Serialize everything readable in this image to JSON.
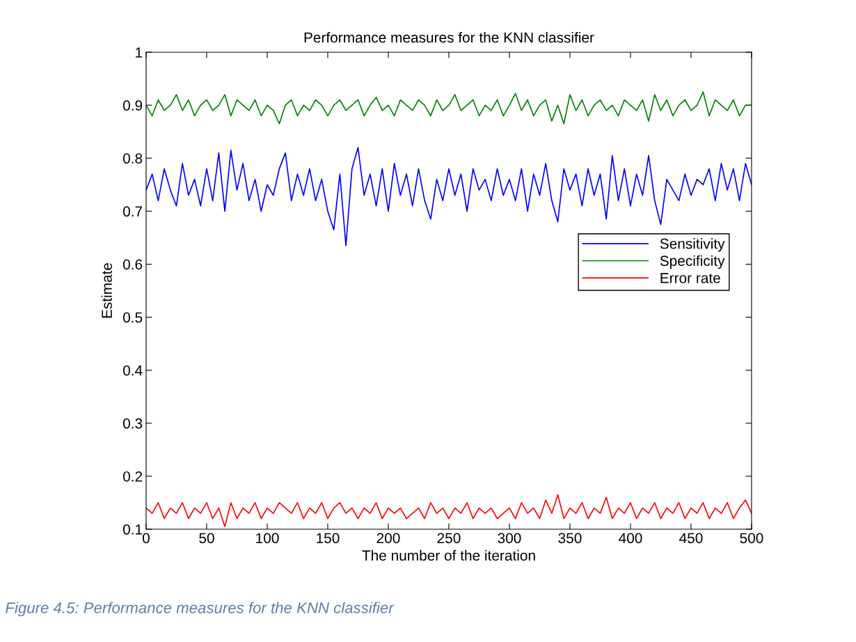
{
  "chart_data": {
    "type": "line",
    "title": "Performance measures for the KNN classifier",
    "xlabel": "The number of the iteration",
    "ylabel": "Estimate",
    "x": [
      0,
      5,
      10,
      15,
      20,
      25,
      30,
      35,
      40,
      45,
      50,
      55,
      60,
      65,
      70,
      75,
      80,
      85,
      90,
      95,
      100,
      105,
      110,
      115,
      120,
      125,
      130,
      135,
      140,
      145,
      150,
      155,
      160,
      165,
      170,
      175,
      180,
      185,
      190,
      195,
      200,
      205,
      210,
      215,
      220,
      225,
      230,
      235,
      240,
      245,
      250,
      255,
      260,
      265,
      270,
      275,
      280,
      285,
      290,
      295,
      300,
      305,
      310,
      315,
      320,
      325,
      330,
      335,
      340,
      345,
      350,
      355,
      360,
      365,
      370,
      375,
      380,
      385,
      390,
      395,
      400,
      405,
      410,
      415,
      420,
      425,
      430,
      435,
      440,
      445,
      450,
      455,
      460,
      465,
      470,
      475,
      480,
      485,
      490,
      495,
      500
    ],
    "series": [
      {
        "name": "Sensitivity",
        "color": "#0000ff",
        "values": [
          0.74,
          0.77,
          0.72,
          0.78,
          0.74,
          0.71,
          0.79,
          0.73,
          0.76,
          0.71,
          0.78,
          0.72,
          0.81,
          0.7,
          0.815,
          0.74,
          0.79,
          0.72,
          0.76,
          0.7,
          0.75,
          0.73,
          0.78,
          0.81,
          0.72,
          0.77,
          0.73,
          0.78,
          0.72,
          0.76,
          0.7,
          0.665,
          0.77,
          0.635,
          0.78,
          0.82,
          0.73,
          0.77,
          0.71,
          0.78,
          0.7,
          0.79,
          0.73,
          0.77,
          0.71,
          0.78,
          0.72,
          0.685,
          0.76,
          0.72,
          0.78,
          0.73,
          0.77,
          0.7,
          0.78,
          0.74,
          0.76,
          0.72,
          0.78,
          0.73,
          0.76,
          0.72,
          0.78,
          0.7,
          0.77,
          0.73,
          0.79,
          0.72,
          0.68,
          0.78,
          0.74,
          0.77,
          0.71,
          0.78,
          0.73,
          0.77,
          0.685,
          0.805,
          0.72,
          0.78,
          0.71,
          0.77,
          0.73,
          0.805,
          0.72,
          0.675,
          0.76,
          0.74,
          0.72,
          0.77,
          0.73,
          0.76,
          0.75,
          0.78,
          0.72,
          0.79,
          0.74,
          0.78,
          0.72,
          0.79,
          0.75
        ]
      },
      {
        "name": "Specificity",
        "color": "#008000",
        "values": [
          0.9,
          0.88,
          0.91,
          0.89,
          0.9,
          0.92,
          0.89,
          0.91,
          0.88,
          0.9,
          0.91,
          0.89,
          0.9,
          0.92,
          0.88,
          0.91,
          0.9,
          0.89,
          0.91,
          0.88,
          0.9,
          0.89,
          0.865,
          0.9,
          0.91,
          0.88,
          0.9,
          0.89,
          0.91,
          0.9,
          0.88,
          0.9,
          0.91,
          0.89,
          0.9,
          0.91,
          0.88,
          0.9,
          0.915,
          0.89,
          0.9,
          0.88,
          0.91,
          0.9,
          0.89,
          0.91,
          0.9,
          0.88,
          0.91,
          0.89,
          0.9,
          0.92,
          0.89,
          0.9,
          0.91,
          0.88,
          0.9,
          0.89,
          0.91,
          0.88,
          0.9,
          0.922,
          0.89,
          0.91,
          0.88,
          0.9,
          0.91,
          0.87,
          0.9,
          0.865,
          0.92,
          0.89,
          0.91,
          0.88,
          0.9,
          0.91,
          0.89,
          0.9,
          0.88,
          0.91,
          0.9,
          0.89,
          0.91,
          0.87,
          0.92,
          0.89,
          0.91,
          0.88,
          0.9,
          0.91,
          0.89,
          0.9,
          0.925,
          0.88,
          0.91,
          0.9,
          0.89,
          0.91,
          0.88,
          0.9,
          0.9
        ]
      },
      {
        "name": "Error rate",
        "color": "#ff0000",
        "values": [
          0.14,
          0.13,
          0.15,
          0.12,
          0.14,
          0.13,
          0.15,
          0.12,
          0.14,
          0.13,
          0.15,
          0.12,
          0.14,
          0.105,
          0.15,
          0.12,
          0.14,
          0.13,
          0.15,
          0.12,
          0.14,
          0.13,
          0.15,
          0.14,
          0.13,
          0.15,
          0.12,
          0.14,
          0.13,
          0.15,
          0.12,
          0.14,
          0.15,
          0.13,
          0.14,
          0.12,
          0.14,
          0.13,
          0.15,
          0.12,
          0.14,
          0.13,
          0.14,
          0.12,
          0.13,
          0.14,
          0.12,
          0.15,
          0.13,
          0.14,
          0.12,
          0.14,
          0.13,
          0.15,
          0.12,
          0.14,
          0.13,
          0.14,
          0.12,
          0.13,
          0.14,
          0.12,
          0.15,
          0.13,
          0.14,
          0.12,
          0.155,
          0.13,
          0.165,
          0.12,
          0.14,
          0.13,
          0.15,
          0.12,
          0.14,
          0.13,
          0.16,
          0.12,
          0.14,
          0.13,
          0.15,
          0.12,
          0.14,
          0.13,
          0.15,
          0.12,
          0.14,
          0.13,
          0.15,
          0.12,
          0.14,
          0.13,
          0.15,
          0.12,
          0.14,
          0.13,
          0.15,
          0.12,
          0.14,
          0.155,
          0.13
        ]
      }
    ],
    "xlim": [
      0,
      500
    ],
    "xticks": [
      0,
      50,
      100,
      150,
      200,
      250,
      300,
      350,
      400,
      450,
      500
    ],
    "ylim": [
      0.1,
      1
    ],
    "yticks": [
      0.1,
      0.2,
      0.3,
      0.4,
      0.5,
      0.6,
      0.7,
      0.8,
      0.9,
      1
    ],
    "grid": false,
    "legend": "right",
    "marker": "none",
    "line_style": "solid",
    "annotations": [
      "Figure 4.5: Performance measures for the KNN classifier"
    ]
  }
}
